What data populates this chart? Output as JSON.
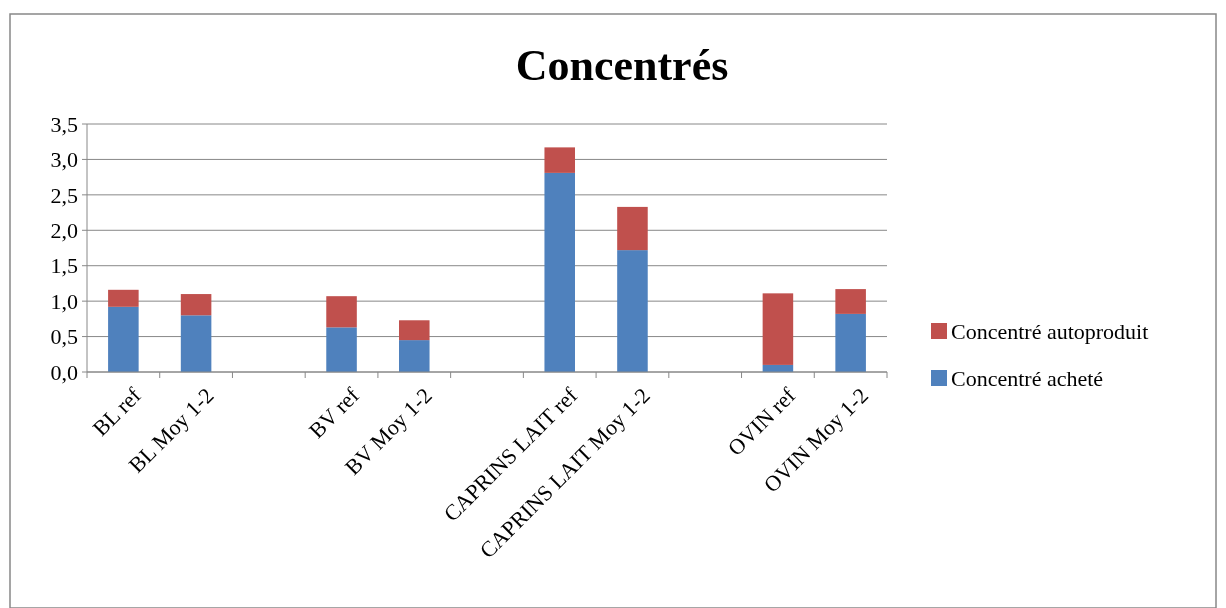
{
  "chart_data": {
    "type": "bar",
    "title": "Concentrés",
    "stacked": true,
    "categories": [
      "BL ref",
      "BL Moy 1-2",
      null,
      "BV ref",
      "BV Moy 1-2",
      null,
      "CAPRINS LAIT ref",
      "CAPRINS LAIT Moy 1-2",
      null,
      "OVIN ref",
      "OVIN Moy 1-2"
    ],
    "series": [
      {
        "name": "Concentré acheté",
        "color": "#4f81bd",
        "values": [
          0.92,
          0.8,
          null,
          0.63,
          0.45,
          null,
          2.81,
          1.72,
          null,
          0.1,
          0.82
        ]
      },
      {
        "name": "Concentré autoproduit",
        "color": "#c0504d",
        "values": [
          0.24,
          0.3,
          null,
          0.44,
          0.28,
          null,
          0.36,
          0.61,
          null,
          1.01,
          0.35
        ]
      }
    ],
    "ylim": [
      0,
      3.5
    ],
    "yticks": [
      {
        "value": 0,
        "label": "0,0"
      },
      {
        "value": 0.5,
        "label": "0,5"
      },
      {
        "value": 1,
        "label": "1,0"
      },
      {
        "value": 1.5,
        "label": "1,5"
      },
      {
        "value": 2,
        "label": "2,0"
      },
      {
        "value": 2.5,
        "label": "2,5"
      },
      {
        "value": 3,
        "label": "3,0"
      },
      {
        "value": 3.5,
        "label": "3,5"
      }
    ],
    "grid": "y",
    "legend": "right"
  }
}
